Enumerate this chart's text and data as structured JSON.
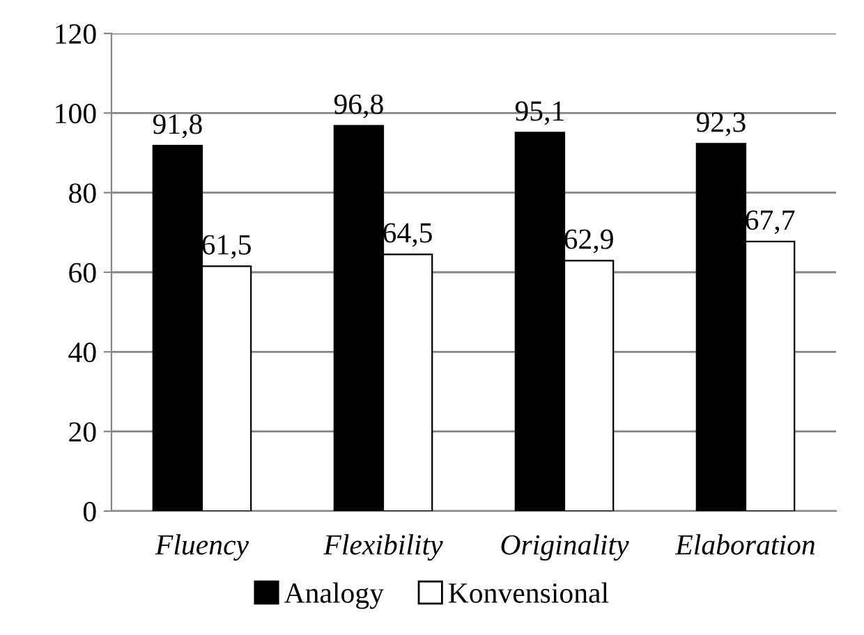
{
  "chart_data": {
    "type": "bar",
    "categories": [
      "Fluency",
      "Flexibility",
      "Originality",
      "Elaboration"
    ],
    "series": [
      {
        "name": "Analogy",
        "color": "#000000",
        "values": [
          91.8,
          96.8,
          95.1,
          92.3
        ],
        "value_labels": [
          "91,8",
          "96,8",
          "95,1",
          "92,3"
        ]
      },
      {
        "name": "Konvensional",
        "color": "#ffffff",
        "values": [
          61.5,
          64.5,
          62.9,
          67.7
        ],
        "value_labels": [
          "61,5",
          "64,5",
          "62,9",
          "67,7"
        ]
      }
    ],
    "ylim": [
      0,
      120
    ],
    "yticks": [
      0,
      20,
      40,
      60,
      80,
      100,
      120
    ],
    "grid": "y",
    "legend": "bottom"
  }
}
